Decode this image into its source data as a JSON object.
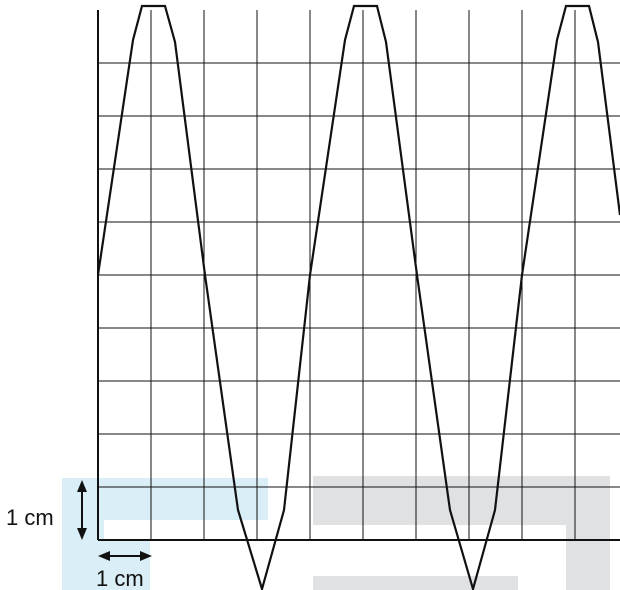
{
  "labels": {
    "vertical_scale": "1 cm",
    "horizontal_scale": "1 cm"
  },
  "grid": {
    "columns": 10,
    "rows": 10
  },
  "waveform": {
    "shape": "triangular",
    "cycles_visible": 2.5,
    "start_level": 0
  },
  "colors": {
    "line": "#111111",
    "grid": "#111111",
    "overlay_blue": "#d9eef6",
    "overlay_grey": "#e0e1e3"
  }
}
